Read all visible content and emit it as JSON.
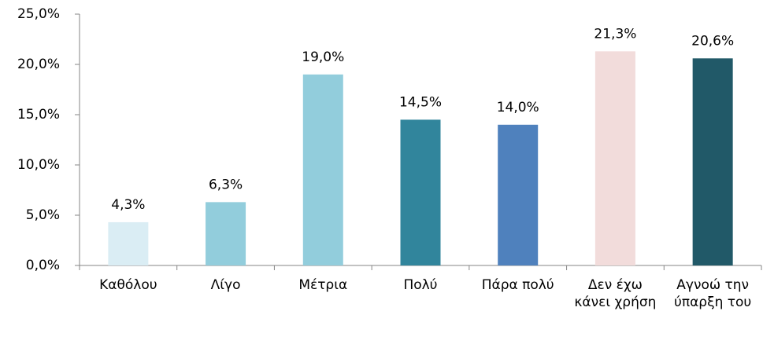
{
  "chart_data": {
    "type": "bar",
    "categories": [
      "Καθόλου",
      "Λίγο",
      "Μέτρια",
      "Πολύ",
      "Πάρα πολύ",
      "Δεν έχω κάνει χρήση",
      "Αγνοώ την ύπαρξη του"
    ],
    "values": [
      4.3,
      6.3,
      19.0,
      14.5,
      14.0,
      21.3,
      20.6
    ],
    "value_labels": [
      "4,3%",
      "6,3%",
      "19,0%",
      "14,5%",
      "14,0%",
      "21,3%",
      "20,6%"
    ],
    "colors": [
      "#daedf4",
      "#92cddc",
      "#92cddc",
      "#31859c",
      "#4f81bd",
      "#f2dcdb",
      "#215968"
    ],
    "ylim": [
      0,
      25
    ],
    "yticks": [
      {
        "value": 0,
        "label": "0,0%"
      },
      {
        "value": 5,
        "label": "5,0%"
      },
      {
        "value": 10,
        "label": "10,0%"
      },
      {
        "value": 15,
        "label": "15,0%"
      },
      {
        "value": 20,
        "label": "20,0%"
      },
      {
        "value": 25,
        "label": "25,0%"
      }
    ],
    "grid": false
  }
}
